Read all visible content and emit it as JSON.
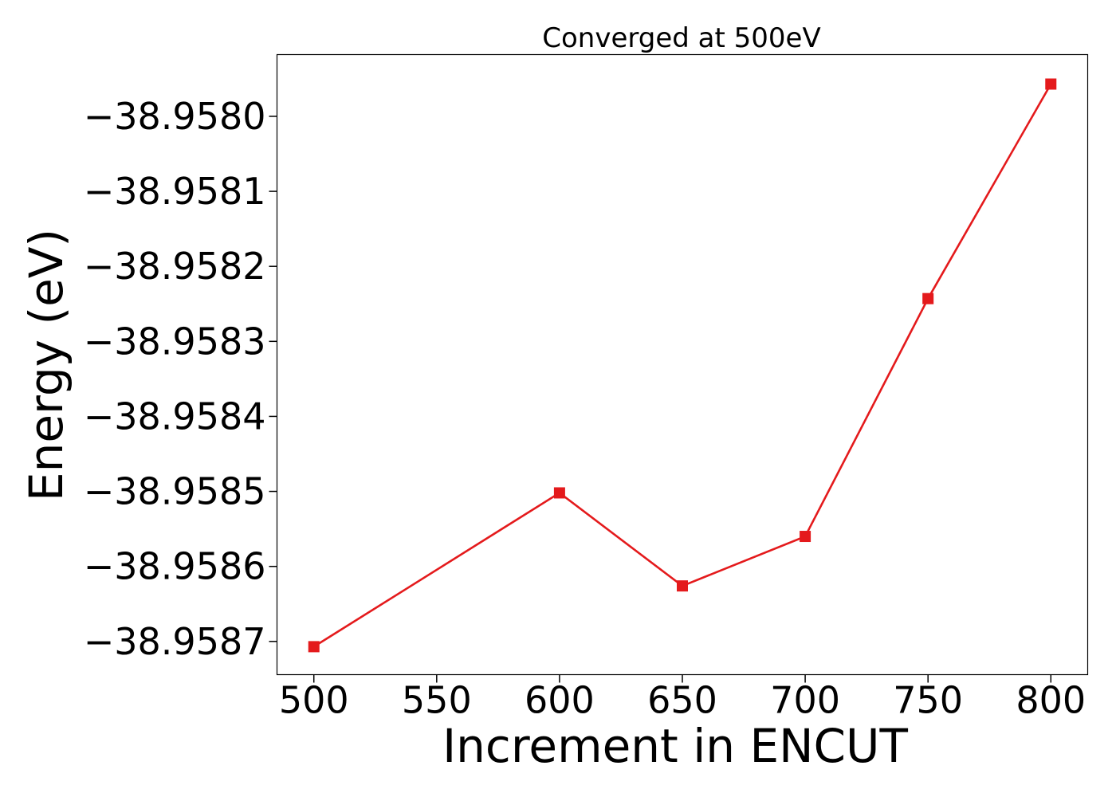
{
  "chart_data": {
    "type": "line",
    "title": "Converged at 500eV",
    "xlabel": "Increment in ENCUT",
    "ylabel": "Energy (eV)",
    "x": [
      500,
      600,
      650,
      700,
      750,
      800
    ],
    "series": [
      {
        "values": [
          -38.958707,
          -38.958502,
          -38.958626,
          -38.95856,
          -38.958243,
          -38.957957
        ],
        "color": "#e41a1c",
        "marker": "square"
      }
    ],
    "x_ticks": [
      500,
      550,
      600,
      650,
      700,
      750,
      800
    ],
    "x_tick_labels": [
      "500",
      "550",
      "600",
      "650",
      "700",
      "750",
      "800"
    ],
    "y_ticks": [
      -38.958,
      -38.9581,
      -38.9582,
      -38.9583,
      -38.9584,
      -38.9585,
      -38.9586,
      -38.9587
    ],
    "y_tick_labels": [
      "−38.9580",
      "−38.9581",
      "−38.9582",
      "−38.9583",
      "−38.9584",
      "−38.9585",
      "−38.9586",
      "−38.9587"
    ],
    "xlim": [
      485,
      815
    ],
    "ylim": [
      -38.9587443,
      -38.9579177
    ],
    "grid": false,
    "legend": "none"
  }
}
